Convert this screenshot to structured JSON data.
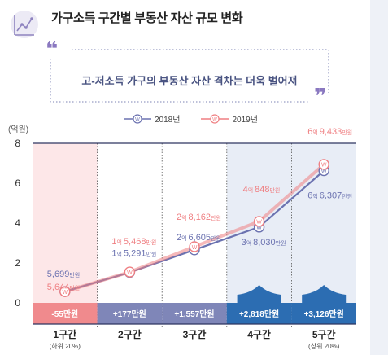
{
  "header": {
    "title": "가구소득 구간별 부동산 자산 규모 변화",
    "icon": "line-chart-icon",
    "accent": "#9b8dc7"
  },
  "callout": {
    "text": "고-저소득 가구의 부동산 자산 격차는 더욱 벌어져",
    "open_quote": "❝",
    "close_quote": "❞"
  },
  "chart_data": {
    "type": "line",
    "ylabel": "(억원)",
    "ylim": [
      0,
      8
    ],
    "yticks": [
      0,
      2,
      4,
      6,
      8
    ],
    "categories": [
      "1구간",
      "2구간",
      "3구간",
      "4구간",
      "5구간"
    ],
    "category_notes": [
      "(하위 20%)",
      "",
      "",
      "",
      "(상위 20%)"
    ],
    "grid": false,
    "legend_position": "top",
    "series": [
      {
        "name": "2018년",
        "color": "#6b72b0",
        "marker": "W",
        "values": [
          0.5699,
          1.5291,
          2.6605,
          3.803,
          6.6307
        ],
        "labels": [
          {
            "big": "",
            "rest": "5,699",
            "unit": "만원"
          },
          {
            "big": "1",
            "rest": "5,291",
            "unit": "만원"
          },
          {
            "big": "2",
            "rest": "6,605",
            "unit": "만원"
          },
          {
            "big": "3",
            "rest": "8,030",
            "unit": "만원"
          },
          {
            "big": "6",
            "rest": "6,307",
            "unit": "만원"
          }
        ]
      },
      {
        "name": "2019년",
        "color": "#ef7f82",
        "marker": "W",
        "values": [
          0.5644,
          1.5468,
          2.8162,
          4.0848,
          6.9433
        ],
        "labels": [
          {
            "big": "",
            "rest": "5,644",
            "unit": "만원"
          },
          {
            "big": "1",
            "rest": "5,468",
            "unit": "만원"
          },
          {
            "big": "2",
            "rest": "8,162",
            "unit": "만원"
          },
          {
            "big": "4",
            "rest": "848",
            "unit": "만원"
          },
          {
            "big": "6",
            "rest": "9,433",
            "unit": "만원"
          }
        ]
      }
    ],
    "big_unit": "억",
    "changes": [
      "-55만원",
      "+177만원",
      "+1,557만원",
      "+2,818만원",
      "+3,126만원"
    ],
    "change_colors": [
      "#f08a8d",
      "#7f86b8",
      "#7f86b8",
      "#2c6db2",
      "#2c6db2"
    ],
    "bands": [
      "#fde7e8",
      "#ffffff",
      "#ffffff",
      "#e8edf6",
      "#e8edf6"
    ],
    "highlight_arrows": [
      false,
      false,
      false,
      true,
      true
    ]
  }
}
